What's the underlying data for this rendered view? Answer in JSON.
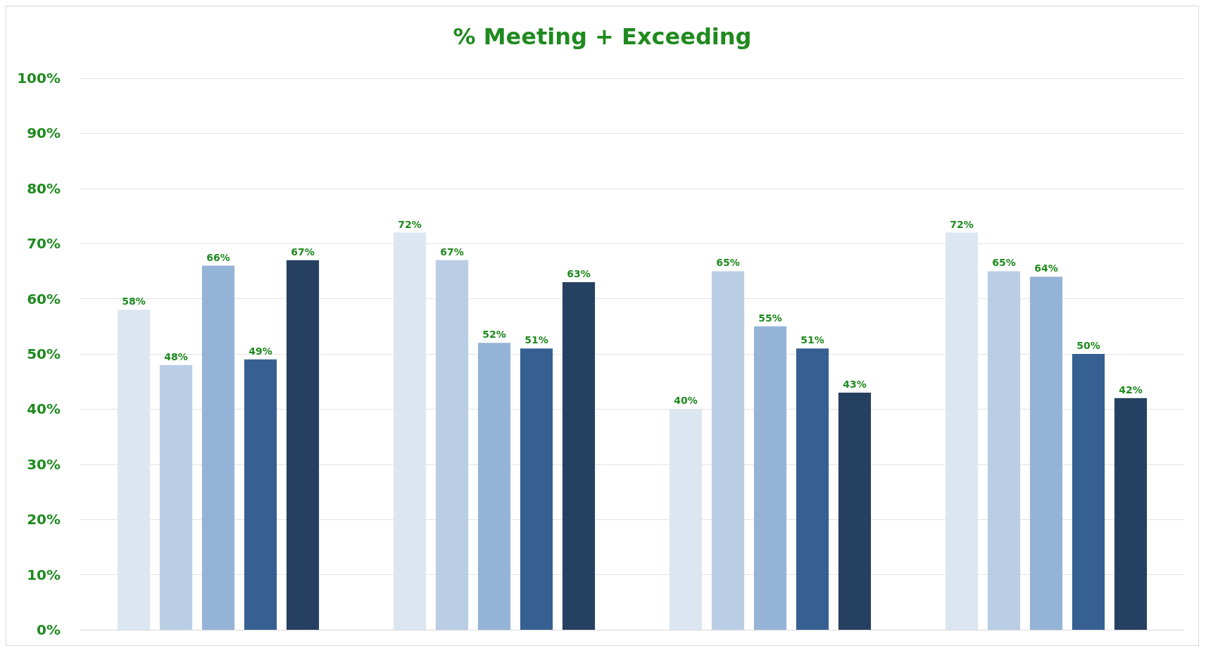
{
  "chart_data": {
    "type": "bar",
    "title": "% Meeting + Exceeding",
    "categories": [
      null,
      null,
      null,
      null
    ],
    "series": [
      {
        "color": "#dce6f1",
        "values": [
          58,
          72,
          40,
          72
        ],
        "value_labels": [
          "58%",
          "72%",
          "40%",
          "72%"
        ]
      },
      {
        "color": "#b9cde5",
        "values": [
          48,
          67,
          65,
          65
        ],
        "value_labels": [
          "48%",
          "67%",
          "65%",
          "65%"
        ]
      },
      {
        "color": "#95b3d7",
        "values": [
          66,
          52,
          55,
          64
        ],
        "value_labels": [
          "66%",
          "52%",
          "55%",
          "64%"
        ]
      },
      {
        "color": "#376092",
        "values": [
          49,
          51,
          51,
          50
        ],
        "value_labels": [
          "49%",
          "51%",
          "51%",
          "50%"
        ]
      },
      {
        "color": "#254061",
        "values": [
          67,
          63,
          43,
          42
        ],
        "value_labels": [
          "67%",
          "63%",
          "43%",
          "42%"
        ]
      }
    ],
    "ylim": [
      0,
      100
    ],
    "yticks": [
      {
        "value": 0,
        "label": "0%"
      },
      {
        "value": 10,
        "label": "10%"
      },
      {
        "value": 20,
        "label": "20%"
      },
      {
        "value": 30,
        "label": "30%"
      },
      {
        "value": 40,
        "label": "40%"
      },
      {
        "value": 50,
        "label": "50%"
      },
      {
        "value": 60,
        "label": "60%"
      },
      {
        "value": 70,
        "label": "70%"
      },
      {
        "value": 80,
        "label": "80%"
      },
      {
        "value": 90,
        "label": "90%"
      },
      {
        "value": 100,
        "label": "100%"
      }
    ],
    "grid": "y"
  }
}
